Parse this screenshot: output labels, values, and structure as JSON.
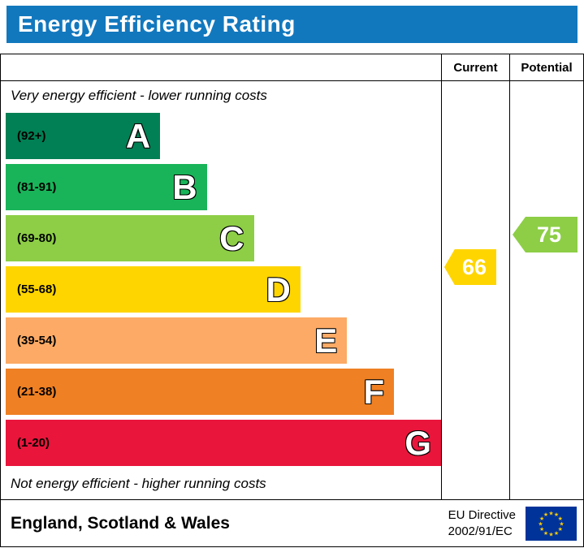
{
  "header": {
    "title": "Energy Efficiency Rating",
    "bar_color": "#1278be"
  },
  "columns": {
    "current_label": "Current",
    "potential_label": "Potential"
  },
  "chart_data": {
    "type": "bar",
    "title": "Energy Efficiency Rating",
    "top_note": "Very energy efficient - lower running costs",
    "bottom_note": "Not energy efficient - higher running costs",
    "grid": false,
    "legend_position": "none",
    "bands": [
      {
        "letter": "A",
        "range_label": "(92+)",
        "range": [
          92,
          100
        ],
        "color": "#008054",
        "width_pct": 35.5
      },
      {
        "letter": "B",
        "range_label": "(81-91)",
        "range": [
          81,
          91
        ],
        "color": "#19b459",
        "width_pct": 46.2
      },
      {
        "letter": "C",
        "range_label": "(69-80)",
        "range": [
          69,
          80
        ],
        "color": "#8dce46",
        "width_pct": 57.0
      },
      {
        "letter": "D",
        "range_label": "(55-68)",
        "range": [
          55,
          68
        ],
        "color": "#ffd500",
        "width_pct": 67.7
      },
      {
        "letter": "E",
        "range_label": "(39-54)",
        "range": [
          39,
          54
        ],
        "color": "#fcaa65",
        "width_pct": 78.4
      },
      {
        "letter": "F",
        "range_label": "(21-38)",
        "range": [
          21,
          38
        ],
        "color": "#ef8023",
        "width_pct": 89.2
      },
      {
        "letter": "G",
        "range_label": "(1-20)",
        "range": [
          1,
          20
        ],
        "color": "#e9153b",
        "width_pct": 100
      }
    ],
    "markers": {
      "current": {
        "value": 66,
        "band": "D",
        "color": "#ffd500"
      },
      "potential": {
        "value": 75,
        "band": "C",
        "color": "#8dce46"
      }
    }
  },
  "footer": {
    "region": "England, Scotland & Wales",
    "directive_line1": "EU Directive",
    "directive_line2": "2002/91/EC",
    "flag_blue": "#003399",
    "flag_star": "#ffcc00"
  }
}
